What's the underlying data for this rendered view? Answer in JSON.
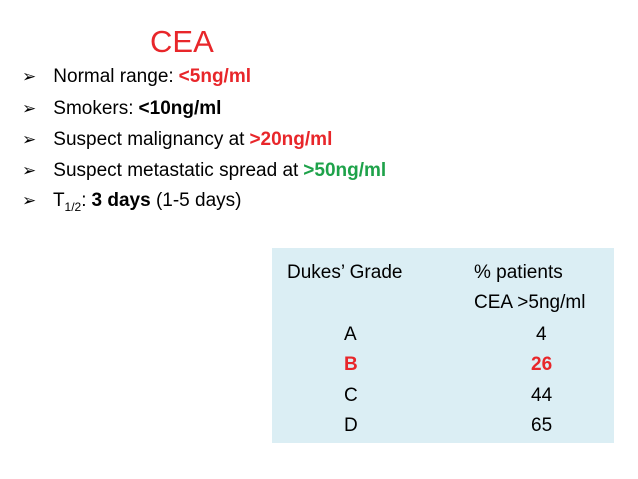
{
  "title": "CEA",
  "bullets": [
    {
      "label": "Normal range:",
      "value": "<5ng/ml"
    },
    {
      "label": "Smokers:",
      "value": "<10ng/ml"
    },
    {
      "label": "Suspect malignancy at",
      "value": ">20ng/ml"
    },
    {
      "label": "Suspect metastatic spread at",
      "value": ">50ng/ml"
    },
    {
      "label": "T",
      "sub": "1/2",
      "colon": ":",
      "value": "3 days",
      "note": "(1-5 days)"
    }
  ],
  "table": {
    "header": [
      "Dukes’ Grade",
      "% patients",
      "CEA >5ng/ml"
    ],
    "rows": [
      [
        "A",
        4
      ],
      [
        "B",
        26
      ],
      [
        "C",
        44
      ],
      [
        "D",
        65
      ]
    ]
  }
}
